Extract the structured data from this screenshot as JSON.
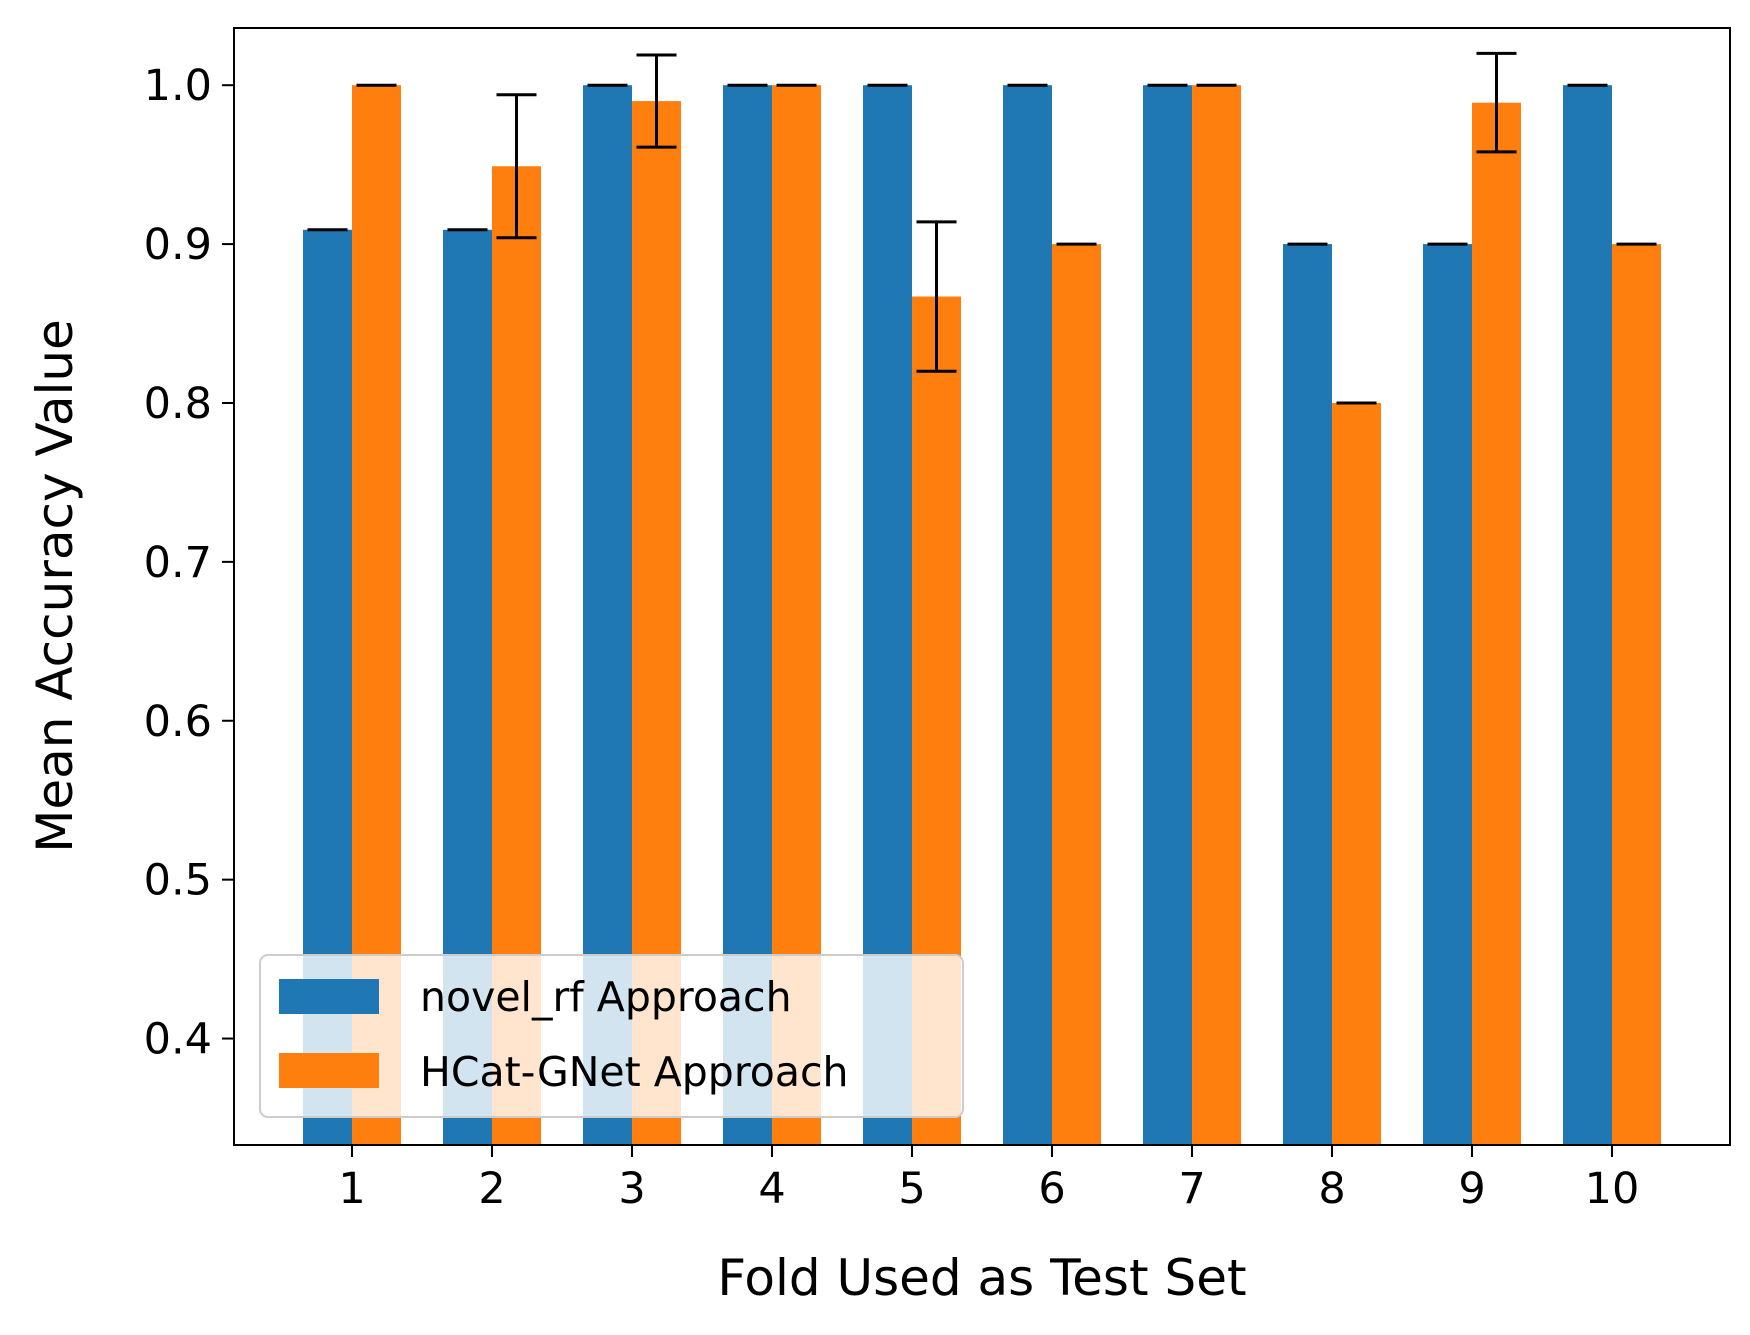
{
  "chart_data": {
    "type": "bar",
    "xlabel": "Fold Used as Test Set",
    "ylabel": "Mean Accuracy Value",
    "categories": [
      "1",
      "2",
      "3",
      "4",
      "5",
      "6",
      "7",
      "8",
      "9",
      "10"
    ],
    "ylim": [
      0.333,
      1.036
    ],
    "yticks": [
      "0.4",
      "0.5",
      "0.6",
      "0.7",
      "0.8",
      "0.9",
      "1.0"
    ],
    "ytick_values": [
      0.4,
      0.5,
      0.6,
      0.7,
      0.8,
      0.9,
      1.0
    ],
    "grid": false,
    "legend_position": "lower-left",
    "series": [
      {
        "name": "novel_rf Approach",
        "color": "#1f77b4",
        "values": [
          0.909,
          0.909,
          1.0,
          1.0,
          1.0,
          1.0,
          1.0,
          0.9,
          0.9,
          1.0
        ],
        "errors": [
          0,
          0,
          0,
          0,
          0,
          0,
          0,
          0,
          0,
          0
        ]
      },
      {
        "name": "HCat-GNet Approach",
        "color": "#ff7f0e",
        "values": [
          1.0,
          0.949,
          0.99,
          1.0,
          0.867,
          0.9,
          1.0,
          0.8,
          0.989,
          0.9
        ],
        "errors": [
          0,
          0.045,
          0.029,
          0,
          0.047,
          0,
          0,
          0,
          0.031,
          0
        ]
      }
    ]
  }
}
